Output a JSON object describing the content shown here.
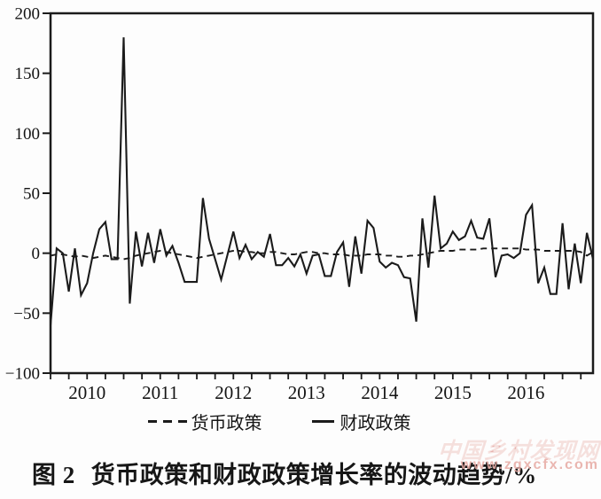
{
  "figure": {
    "caption_label": "图 2",
    "caption_text": "货币政策和财政政策增长率的波动趋势/%"
  },
  "watermark": {
    "line1": "中国乡村发现网",
    "line2": "www.zgxcfx.com",
    "color": "#dd8f88"
  },
  "chart_data": {
    "type": "line",
    "title": "图 2 货币政策和财政政策增长率的波动趋势/%",
    "unit": "%",
    "x_freq": "monthly",
    "x_start": "2009-07",
    "x_end": "2016-12",
    "x_year_labels": [
      "2010",
      "2011",
      "2012",
      "2013",
      "2014",
      "2015",
      "2016"
    ],
    "y_ticks": [
      200,
      150,
      100,
      50,
      0,
      -50,
      -100
    ],
    "ylim": [
      -100,
      200
    ],
    "grid": false,
    "legend_position": "bottom",
    "line_color": "#1b1b1b",
    "series": [
      {
        "name": "货币政策",
        "style": "dashed",
        "values": [
          -2,
          -1,
          -1,
          -2,
          -3,
          -2,
          -3,
          -4,
          -3,
          -2,
          -3,
          -4,
          -5,
          -4,
          -2,
          -1,
          0,
          1,
          2,
          1,
          0,
          -1,
          -2,
          -3,
          -4,
          -3,
          -2,
          -1,
          0,
          1,
          2,
          2,
          1,
          1,
          0,
          0,
          1,
          1,
          0,
          -1,
          -1,
          0,
          1,
          1,
          0,
          0,
          -1,
          -1,
          -1,
          -2,
          -2,
          -2,
          -1,
          -1,
          -1,
          -2,
          -2,
          -3,
          -3,
          -2,
          -2,
          -1,
          0,
          1,
          2,
          2,
          2,
          3,
          3,
          3,
          3,
          4,
          4,
          4,
          4,
          4,
          4,
          4,
          3,
          3,
          3,
          2,
          2,
          2,
          2,
          2,
          2,
          1,
          -2,
          1
        ]
      },
      {
        "name": "财政政策",
        "style": "solid",
        "values": [
          -60,
          4,
          0,
          -32,
          4,
          -35,
          -25,
          0,
          20,
          26,
          -5,
          -5,
          180,
          -42,
          18,
          -11,
          17,
          -8,
          20,
          -2,
          6,
          -8,
          -24,
          -24,
          -24,
          46,
          12,
          -5,
          -22,
          -2,
          18,
          -4,
          7,
          -5,
          1,
          -3,
          16,
          -10,
          -10,
          -4,
          -11,
          -1,
          -17,
          -2,
          -1,
          -19,
          -19,
          1,
          9,
          -28,
          14,
          -17,
          27,
          21,
          -7,
          -12,
          -8,
          -10,
          -20,
          -21,
          -57,
          29,
          -12,
          48,
          4,
          8,
          18,
          11,
          14,
          27,
          13,
          12,
          29,
          -20,
          -2,
          -1,
          -4,
          0,
          32,
          40,
          -25,
          -12,
          -34,
          -34,
          25,
          -30,
          8,
          -25,
          17,
          -5
        ]
      }
    ]
  }
}
